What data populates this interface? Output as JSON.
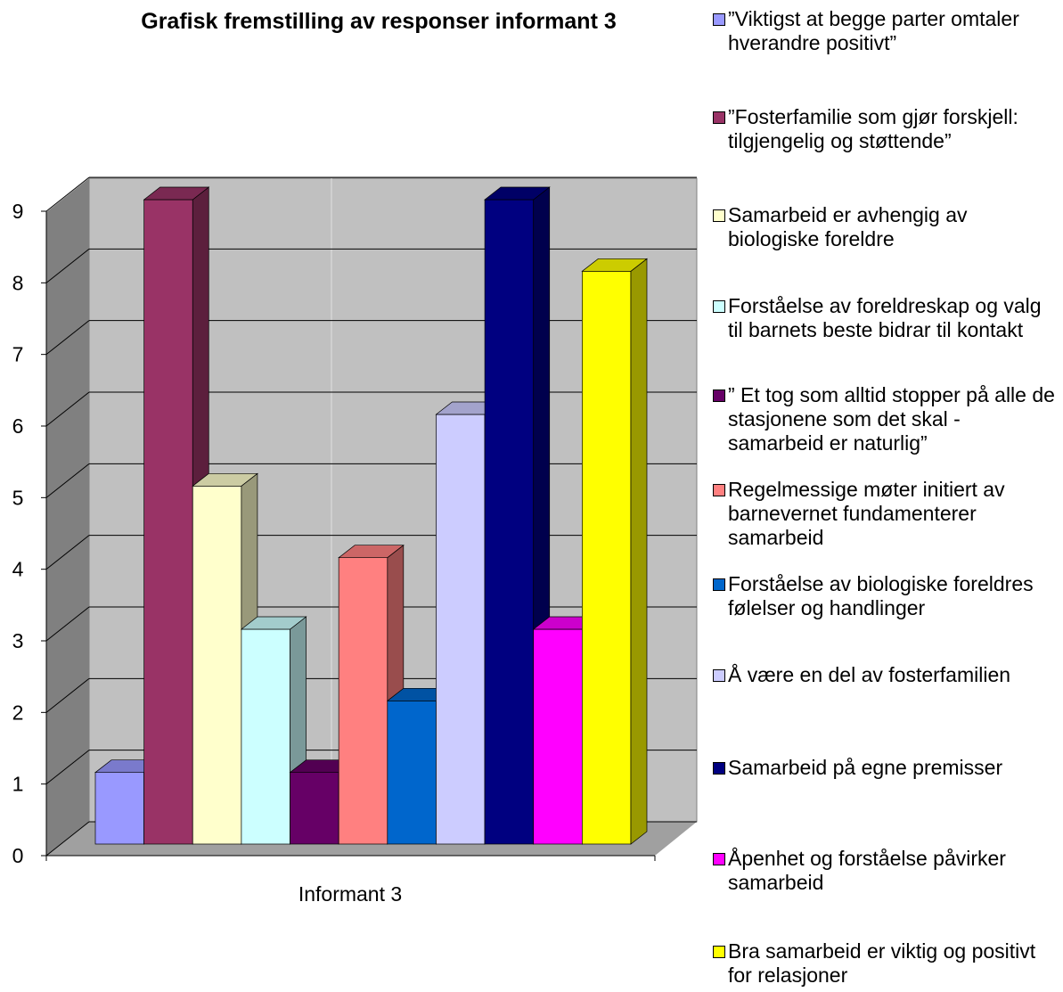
{
  "chart_data": {
    "type": "bar3d",
    "title": "Grafisk fremstilling av responser informant 3",
    "categories": [
      "Informant 3"
    ],
    "series": [
      {
        "name": "”Viktigst at begge parter omtaler hverandre positivt”",
        "color": "#9999ff",
        "values": [
          1
        ]
      },
      {
        "name": "”Fosterfamilie som gjør forskjell: tilgjengelig og støttende”",
        "color": "#993366",
        "values": [
          9
        ]
      },
      {
        "name": "Samarbeid er avhengig av biologiske foreldre",
        "color": "#ffffcc",
        "values": [
          5
        ]
      },
      {
        "name": "Forståelse av foreldreskap og valg til barnets beste bidrar til kontakt",
        "color": "#ccffff",
        "values": [
          3
        ]
      },
      {
        "name": "” Et tog som alltid stopper på alle de stasjonene som det skal - samarbeid er naturlig”",
        "color": "#660066",
        "values": [
          1
        ]
      },
      {
        "name": "Regelmessige møter initiert av barnevernet fundamenterer samarbeid",
        "color": "#ff8080",
        "values": [
          4
        ]
      },
      {
        "name": "Forståelse av biologiske foreldres følelser og handlinger",
        "color": "#0066cc",
        "values": [
          2
        ]
      },
      {
        "name": " Å være en del av fosterfamilien",
        "color": "#ccccff",
        "values": [
          6
        ]
      },
      {
        "name": "Samarbeid på egne premisser",
        "color": "#000080",
        "values": [
          9
        ]
      },
      {
        "name": "Åpenhet og forståelse påvirker samarbeid",
        "color": "#ff00ff",
        "values": [
          3
        ]
      },
      {
        "name": "Bra samarbeid er viktig og positivt for relasjoner",
        "color": "#ffff00",
        "values": [
          8
        ]
      }
    ],
    "ylim": [
      0,
      9
    ],
    "yticks": [
      0,
      1,
      2,
      3,
      4,
      5,
      6,
      7,
      8,
      9
    ],
    "grid": true,
    "legend": "right"
  }
}
